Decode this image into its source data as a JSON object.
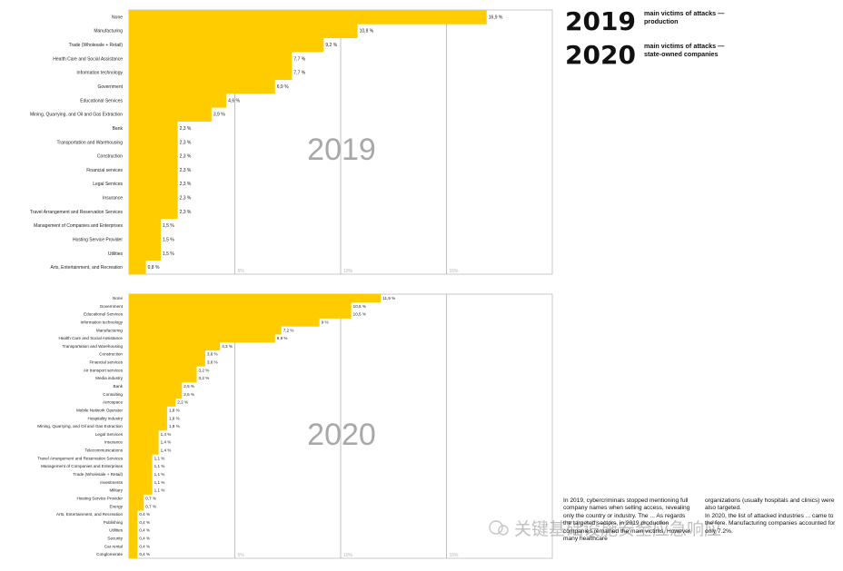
{
  "legend": {
    "line1_year": "2019",
    "line1_text": "main victims of attacks —\nproduction",
    "line2_year": "2020",
    "line2_text": "main victims of attacks —\nstate-owned companies"
  },
  "chart_data": [
    {
      "type": "bar",
      "orientation": "horizontal",
      "watermark": "2019",
      "xlim": [
        0,
        20
      ],
      "gridlines": [
        5,
        10,
        15
      ],
      "tick_labels": [
        "5%",
        "10%",
        "15%"
      ],
      "bar_color": "#FFCC00",
      "value_labels": [
        "16,9 %",
        "10,8 %",
        "9,2 %",
        "7,7 %",
        "7,7 %",
        "6,9 %",
        "4,6 %",
        "3,9 %",
        "2,3 %",
        "2,3 %",
        "2,3 %",
        "2,3 %",
        "2,3 %",
        "2,3 %",
        "2,3 %",
        "1,5 %",
        "1,5 %",
        "1,5 %",
        "0,8 %"
      ],
      "categories": [
        "None",
        "Manufacturing",
        "Trade (Wholesale + Retail)",
        "Health Care and Social Assistance",
        "Information technology",
        "Government",
        "Educational Services",
        "Mining, Quarrying, and Oil and Gas Extraction",
        "Bank",
        "Transportation and Warehousing",
        "Construction",
        "Financial services",
        "Legal Services",
        "Insurance",
        "Travel Arrangement and Reservation Services",
        "Management of Companies and Enterprises",
        "Hosting Service Provider",
        "Utilities",
        "Arts, Entertainment, and Recreation"
      ],
      "values": [
        16.9,
        10.8,
        9.2,
        7.7,
        7.7,
        6.9,
        4.6,
        3.9,
        2.3,
        2.3,
        2.3,
        2.3,
        2.3,
        2.3,
        2.3,
        1.5,
        1.5,
        1.5,
        0.8
      ]
    },
    {
      "type": "bar",
      "orientation": "horizontal",
      "watermark": "2020",
      "xlim": [
        0,
        20
      ],
      "gridlines": [
        5,
        10,
        15
      ],
      "tick_labels": [
        "5%",
        "10%",
        "15%"
      ],
      "bar_color": "#FFCC00",
      "value_labels": [
        "11,9 %",
        "10,5 %",
        "10,5 %",
        "9 %",
        "7,2 %",
        "6,9 %",
        "4,3 %",
        "3,6 %",
        "3,6 %",
        "3,2 %",
        "3,2 %",
        "2,5 %",
        "2,5 %",
        "2,2 %",
        "1,8 %",
        "1,8 %",
        "1,8 %",
        "1,4 %",
        "1,4 %",
        "1,4 %",
        "1,1 %",
        "1,1 %",
        "1,1 %",
        "1,1 %",
        "1,1 %",
        "0,7 %",
        "0,7 %",
        "0,4 %",
        "0,4 %",
        "0,4 %",
        "0,4 %",
        "0,4 %",
        "0,4 %"
      ],
      "categories": [
        "None",
        "Government",
        "Educational Services",
        "Information technology",
        "Manufacturing",
        "Health Care and Social Assistance",
        "Transportation and Warehousing",
        "Construction",
        "Financial services",
        "Air transport services",
        "Media industry",
        "Bank",
        "Consulting",
        "Aerospace",
        "Mobile Network Operator",
        "Hospitality industry",
        "Mining, Quarrying, and Oil and Gas Extraction",
        "Legal Services",
        "Insurance",
        "Telecommunications",
        "Travel Arrangement and Reservation Services",
        "Management of Companies and Enterprises",
        "Trade (Wholesale + Retail)",
        "Investments",
        "Military",
        "Hosting Service Provider",
        "Energy",
        "Arts, Entertainment, and Recreation",
        "Publishing",
        "Utilities",
        "Security",
        "Car rental",
        "Conglomerate"
      ],
      "values": [
        11.9,
        10.5,
        10.5,
        9.0,
        7.2,
        6.9,
        4.3,
        3.6,
        3.6,
        3.2,
        3.2,
        2.5,
        2.5,
        2.2,
        1.8,
        1.8,
        1.8,
        1.4,
        1.4,
        1.4,
        1.1,
        1.1,
        1.1,
        1.1,
        1.1,
        0.7,
        0.7,
        0.4,
        0.4,
        0.4,
        0.4,
        0.4,
        0.4
      ]
    }
  ],
  "side_text": {
    "col1": "In 2019, cybercriminals stopped mentioning full company names when selling access, revealing only the country or industry. The ... As regards the targeted sectors, in 2019 production companies remained the main victims. However, many healthcare",
    "col2": "organizations (usually hospitals and clinics) were also targeted.\nIn 2020, the list of attacked industries ... came to the fore. Manufacturing companies accounted for only 7.2%."
  },
  "watermark": {
    "text": "关键基础设施安全应急响应"
  }
}
